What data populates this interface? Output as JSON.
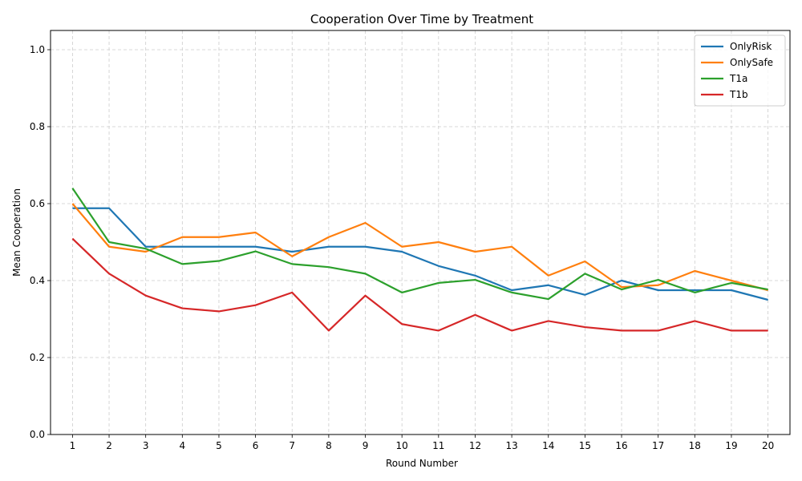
{
  "chart_data": {
    "type": "line",
    "title": "Cooperation Over Time by Treatment",
    "xlabel": "Round Number",
    "ylabel": "Mean Cooperation",
    "x": [
      1,
      2,
      3,
      4,
      5,
      6,
      7,
      8,
      9,
      10,
      11,
      12,
      13,
      14,
      15,
      16,
      17,
      18,
      19,
      20
    ],
    "xlim": [
      0.4,
      20.6
    ],
    "ylim": [
      0,
      1.05
    ],
    "yticks": [
      0.0,
      0.2,
      0.4,
      0.6,
      0.8,
      1.0
    ],
    "ytick_labels": [
      "0.0",
      "0.2",
      "0.4",
      "0.6",
      "0.8",
      "1.0"
    ],
    "grid": true,
    "grid_style": "dashed",
    "legend_position": "top-right",
    "series": [
      {
        "name": "OnlyRisk",
        "color": "#1f77b4",
        "values": [
          0.588,
          0.588,
          0.488,
          0.488,
          0.488,
          0.488,
          0.475,
          0.488,
          0.488,
          0.475,
          0.438,
          0.413,
          0.375,
          0.388,
          0.363,
          0.4,
          0.375,
          0.375,
          0.375,
          0.35
        ]
      },
      {
        "name": "OnlySafe",
        "color": "#ff7f0e",
        "values": [
          0.6,
          0.488,
          0.475,
          0.513,
          0.513,
          0.525,
          0.463,
          0.513,
          0.55,
          0.488,
          0.5,
          0.475,
          0.488,
          0.413,
          0.45,
          0.383,
          0.388,
          0.425,
          0.4,
          0.375
        ]
      },
      {
        "name": "T1a",
        "color": "#2ca02c",
        "values": [
          0.64,
          0.5,
          0.483,
          0.443,
          0.451,
          0.476,
          0.443,
          0.435,
          0.418,
          0.369,
          0.394,
          0.402,
          0.369,
          0.352,
          0.418,
          0.377,
          0.402,
          0.369,
          0.394,
          0.377
        ]
      },
      {
        "name": "T1b",
        "color": "#d62728",
        "values": [
          0.509,
          0.418,
          0.361,
          0.328,
          0.32,
          0.336,
          0.369,
          0.27,
          0.361,
          0.287,
          0.27,
          0.311,
          0.27,
          0.295,
          0.279,
          0.27,
          0.27,
          0.295,
          0.27,
          0.27
        ]
      }
    ]
  }
}
